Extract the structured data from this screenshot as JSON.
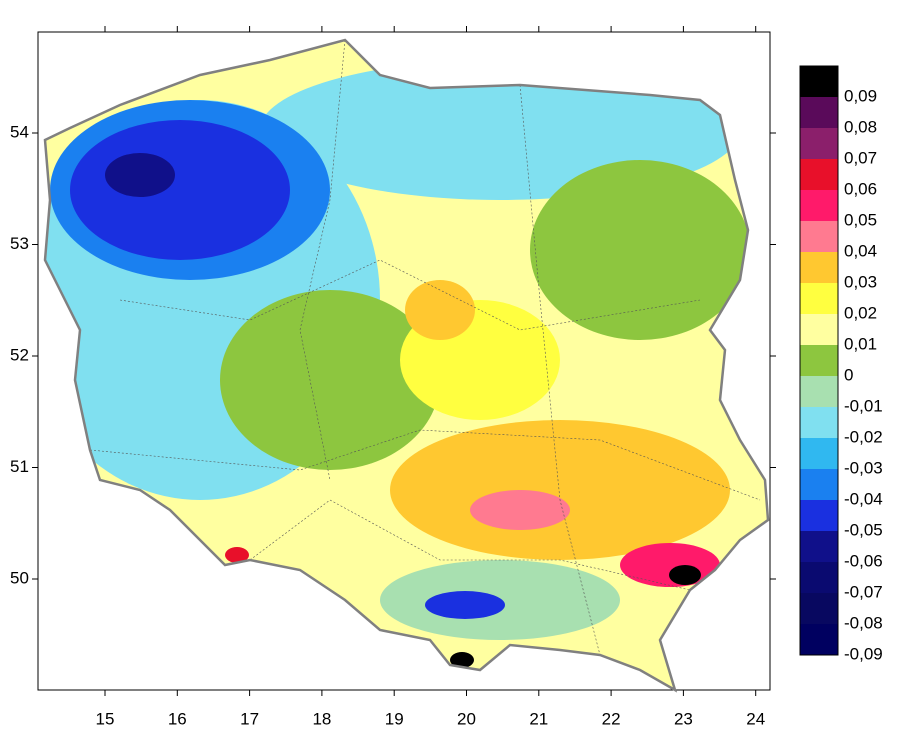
{
  "x_axis": {
    "ticks": [
      15,
      16,
      17,
      18,
      19,
      20,
      21,
      22,
      23,
      24
    ]
  },
  "y_axis": {
    "ticks": [
      50,
      51,
      52,
      53,
      54
    ]
  },
  "legend": {
    "items": [
      {
        "label": "0,09",
        "color": "#000000"
      },
      {
        "label": "0,08",
        "color": "#5a0a5a"
      },
      {
        "label": "0,07",
        "color": "#8b1f6b"
      },
      {
        "label": "0,06",
        "color": "#e8102a"
      },
      {
        "label": "0,05",
        "color": "#ff1a6a"
      },
      {
        "label": "0,04",
        "color": "#ff7a90"
      },
      {
        "label": "0,03",
        "color": "#ffc830"
      },
      {
        "label": "0,02",
        "color": "#ffff40"
      },
      {
        "label": "0,01",
        "color": "#ffffa0"
      },
      {
        "label": "0",
        "color": "#8dc63f"
      },
      {
        "label": "-0,01",
        "color": "#a8e0b0"
      },
      {
        "label": "-0,02",
        "color": "#80e0f0"
      },
      {
        "label": "-0,03",
        "color": "#30b8f0"
      },
      {
        "label": "-0,04",
        "color": "#1a80f0"
      },
      {
        "label": "-0,05",
        "color": "#1a30e0"
      },
      {
        "label": "-0,06",
        "color": "#10108a"
      },
      {
        "label": "-0,07",
        "color": "#0a0a70"
      },
      {
        "label": "-0,08",
        "color": "#080860"
      },
      {
        "label": "-0,09",
        "color": "#000060"
      }
    ]
  }
}
